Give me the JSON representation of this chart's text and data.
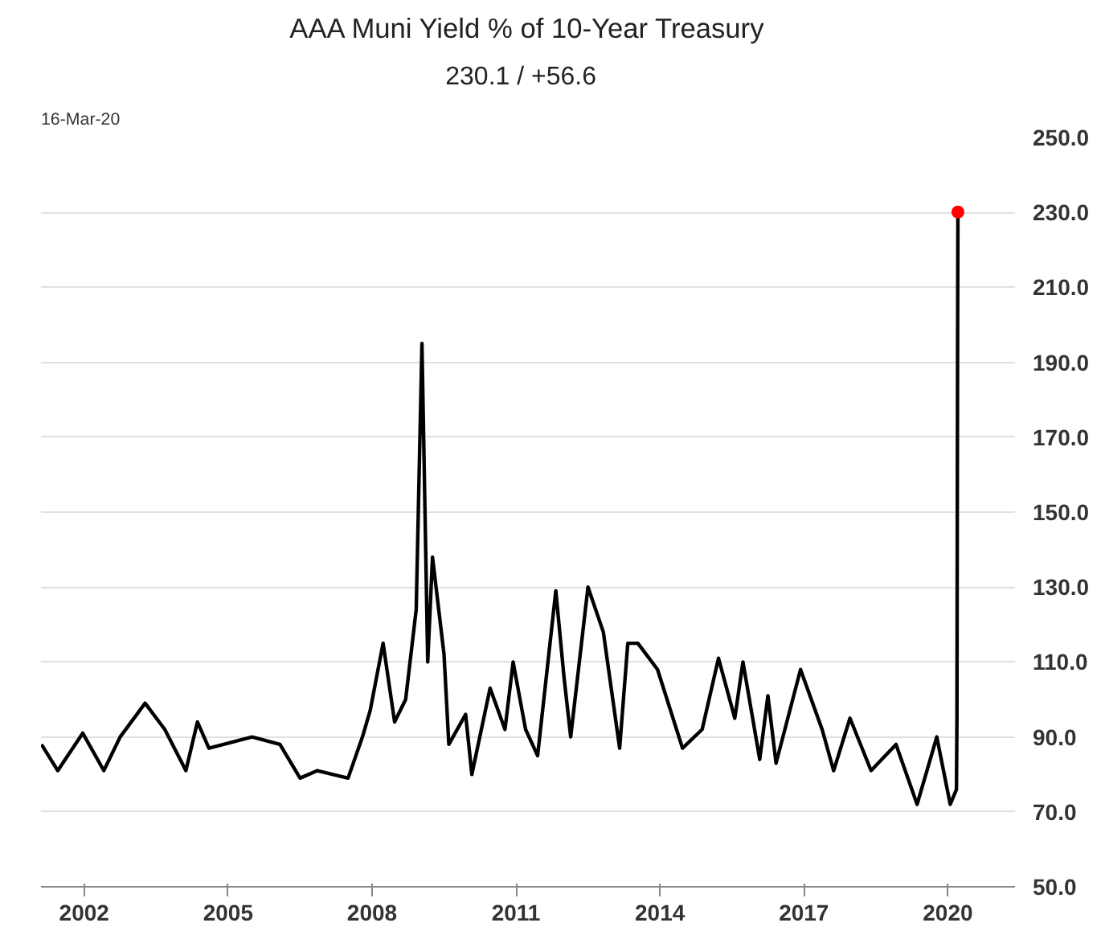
{
  "chart_data": {
    "type": "line",
    "title": "AAA Muni Yield % of 10-Year Treasury",
    "subtitle": "230.1  /  +56.6",
    "annotations": [
      "16-Mar-20"
    ],
    "series": [
      {
        "color": "#000000",
        "x": [
          2001.11,
          2001.45,
          2001.97,
          2002.41,
          2002.75,
          2003.27,
          2003.68,
          2004.12,
          2004.36,
          2004.6,
          2005.5,
          2006.08,
          2006.5,
          2006.86,
          2007.5,
          2007.8,
          2007.96,
          2008.23,
          2008.47,
          2008.7,
          2008.92,
          2009.04,
          2009.16,
          2009.26,
          2009.5,
          2009.6,
          2009.95,
          2010.08,
          2010.46,
          2010.77,
          2010.94,
          2011.2,
          2011.45,
          2011.83,
          2012.0,
          2012.14,
          2012.5,
          2012.82,
          2013.16,
          2013.33,
          2013.54,
          2013.95,
          2014.47,
          2014.88,
          2015.22,
          2015.56,
          2015.73,
          2016.08,
          2016.25,
          2016.42,
          2016.93,
          2017.38,
          2017.62,
          2017.96,
          2018.4,
          2018.92,
          2019.36,
          2019.77,
          2020.05,
          2020.18,
          2020.19,
          2020.2,
          2020.205,
          2020.21
        ],
        "values": [
          88,
          81,
          91,
          81,
          90,
          99,
          92,
          81,
          94,
          87,
          90,
          88,
          79,
          81,
          79,
          90,
          97,
          115,
          94,
          100,
          124,
          195,
          110,
          138,
          112,
          88,
          96,
          80,
          103,
          92,
          110,
          92,
          85,
          129,
          106,
          90,
          130,
          118,
          87,
          115,
          115,
          108,
          87,
          92,
          111,
          95,
          110,
          84,
          101,
          83,
          108,
          92,
          81,
          95,
          81,
          88,
          72,
          90,
          72,
          76,
          95,
          173,
          205,
          230.1
        ]
      },
      {
        "type": "scatter",
        "marker": "circle",
        "color": "#ff0000",
        "x": [
          2020.21
        ],
        "values": [
          230.1
        ]
      }
    ],
    "xlim": [
      2001.1,
      2021.4
    ],
    "xticks": [
      2002,
      2005,
      2008,
      2011,
      2014,
      2017,
      2020
    ],
    "ylim": [
      50,
      250
    ],
    "yticks": [
      {
        "value": 50,
        "label": "50.0"
      },
      {
        "value": 70,
        "label": "70.0"
      },
      {
        "value": 90,
        "label": "90.0"
      },
      {
        "value": 110,
        "label": "110.0"
      },
      {
        "value": 130,
        "label": "130.0"
      },
      {
        "value": 150,
        "label": "150.0"
      },
      {
        "value": 170,
        "label": "170.0"
      },
      {
        "value": 190,
        "label": "190.0"
      },
      {
        "value": 210,
        "label": "210.0"
      },
      {
        "value": 230,
        "label": "230.0"
      },
      {
        "value": 250,
        "label": "250.0"
      }
    ],
    "grid": "y"
  }
}
